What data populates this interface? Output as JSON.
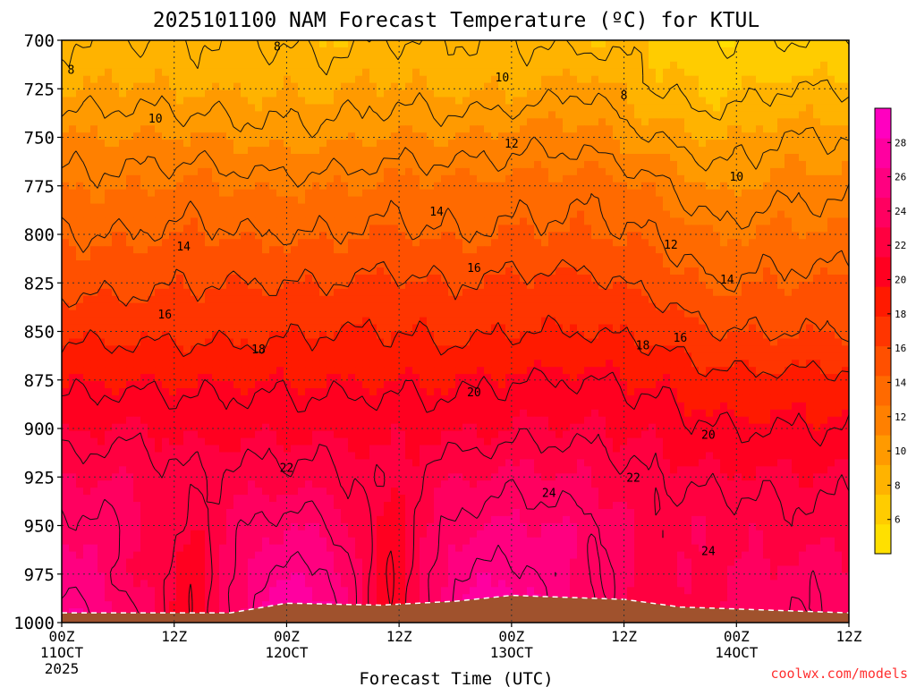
{
  "chart_data": {
    "type": "heatmap",
    "title": "2025101100 NAM Forecast Temperature (ºC) for KTUL",
    "xlabel": "Forecast Time (UTC)",
    "ylabel": "",
    "credit": "coolwx.com/models",
    "x_ticks": [
      {
        "hours": 0,
        "line1": "00Z",
        "line2": "11OCT",
        "line3": "2025"
      },
      {
        "hours": 12,
        "line1": "12Z",
        "line2": "",
        "line3": ""
      },
      {
        "hours": 24,
        "line1": "00Z",
        "line2": "12OCT",
        "line3": ""
      },
      {
        "hours": 36,
        "line1": "12Z",
        "line2": "",
        "line3": ""
      },
      {
        "hours": 48,
        "line1": "00Z",
        "line2": "13OCT",
        "line3": ""
      },
      {
        "hours": 60,
        "line1": "12Z",
        "line2": "",
        "line3": ""
      },
      {
        "hours": 72,
        "line1": "00Z",
        "line2": "14OCT",
        "line3": ""
      },
      {
        "hours": 84,
        "line1": "12Z",
        "line2": "",
        "line3": ""
      }
    ],
    "xlim_hours": [
      0,
      84
    ],
    "y_ticks": [
      "700",
      "725",
      "750",
      "775",
      "800",
      "825",
      "850",
      "875",
      "900",
      "925",
      "950",
      "975",
      "1000"
    ],
    "ylim": [
      1000,
      700
    ],
    "grid": true,
    "colorbar": {
      "placement": "right",
      "ticks": [
        "6",
        "8",
        "10",
        "12",
        "14",
        "16",
        "18",
        "20",
        "22",
        "24",
        "26",
        "28"
      ],
      "range": [
        4,
        30
      ],
      "colors": [
        "#FFE000",
        "#FFCC00",
        "#FFB300",
        "#FF9A00",
        "#FF8000",
        "#FF6A00",
        "#FF5000",
        "#FF3500",
        "#FF1A00",
        "#FF0020",
        "#FF0040",
        "#FF0060",
        "#FF0080",
        "#FF00A0",
        "#FF00C0"
      ]
    },
    "contour_labels": [
      {
        "text": "8",
        "hours": 1,
        "p": 715
      },
      {
        "text": "8",
        "hours": 23,
        "p": 703
      },
      {
        "text": "8",
        "hours": 60,
        "p": 728
      },
      {
        "text": "10",
        "hours": 10,
        "p": 740
      },
      {
        "text": "10",
        "hours": 47,
        "p": 719
      },
      {
        "text": "10",
        "hours": 72,
        "p": 770
      },
      {
        "text": "12",
        "hours": 48,
        "p": 753
      },
      {
        "text": "12",
        "hours": 65,
        "p": 805
      },
      {
        "text": "14",
        "hours": 13,
        "p": 806
      },
      {
        "text": "14",
        "hours": 40,
        "p": 788
      },
      {
        "text": "14",
        "hours": 71,
        "p": 823
      },
      {
        "text": "16",
        "hours": 11,
        "p": 841
      },
      {
        "text": "16",
        "hours": 44,
        "p": 817
      },
      {
        "text": "16",
        "hours": 66,
        "p": 853
      },
      {
        "text": "18",
        "hours": 21,
        "p": 859
      },
      {
        "text": "18",
        "hours": 62,
        "p": 857
      },
      {
        "text": "20",
        "hours": 44,
        "p": 881
      },
      {
        "text": "20",
        "hours": 69,
        "p": 903
      },
      {
        "text": "22",
        "hours": 24,
        "p": 920
      },
      {
        "text": "22",
        "hours": 61,
        "p": 925
      },
      {
        "text": "24",
        "hours": 52,
        "p": 933
      },
      {
        "text": "24",
        "hours": 69,
        "p": 963
      }
    ],
    "field_rows": [
      {
        "p": 700,
        "values": [
          8,
          8,
          8,
          8,
          7.5,
          8,
          8,
          8,
          7.5,
          7.5,
          6,
          6,
          6
        ]
      },
      {
        "p": 725,
        "values": [
          9,
          9.5,
          9,
          9,
          9,
          9.5,
          9,
          9,
          10,
          8,
          7,
          8,
          8
        ]
      },
      {
        "p": 750,
        "values": [
          11,
          11,
          11,
          10.5,
          10.5,
          11,
          11,
          11.5,
          11.5,
          10,
          9,
          10,
          10
        ]
      },
      {
        "p": 775,
        "values": [
          12.5,
          12.5,
          13,
          12.5,
          12.5,
          13,
          13,
          13,
          13.5,
          12.5,
          10.5,
          11.5,
          11.5
        ]
      },
      {
        "p": 800,
        "values": [
          14,
          14,
          14.5,
          14,
          14,
          14.5,
          14,
          14.5,
          14.5,
          14,
          12.5,
          13,
          13
        ]
      },
      {
        "p": 825,
        "values": [
          15.5,
          15.5,
          16,
          16,
          16,
          16.5,
          16,
          16.5,
          16.5,
          15.5,
          14,
          14.5,
          14.5
        ]
      },
      {
        "p": 850,
        "values": [
          17.5,
          17.5,
          17.5,
          17.5,
          18,
          18,
          17.5,
          18,
          18,
          17.5,
          16,
          16,
          16
        ]
      },
      {
        "p": 875,
        "values": [
          19.5,
          19.5,
          19.5,
          19.5,
          19.5,
          19.5,
          19.5,
          20,
          20,
          19.5,
          18.5,
          18.5,
          18.5
        ]
      },
      {
        "p": 900,
        "values": [
          21,
          21.5,
          21,
          21,
          21,
          21,
          21,
          21.5,
          21.5,
          21,
          20,
          20,
          20
        ]
      },
      {
        "p": 925,
        "values": [
          23,
          23,
          22,
          22.5,
          22.5,
          21.5,
          23,
          23.5,
          23,
          22,
          21.5,
          21.5,
          21.5
        ]
      },
      {
        "p": 950,
        "values": [
          24.5,
          24,
          21.5,
          24.5,
          24.5,
          20.5,
          24.5,
          25,
          24.5,
          22.5,
          23,
          22.5,
          22.5
        ]
      },
      {
        "p": 975,
        "values": [
          26,
          23.5,
          20.5,
          26,
          26.5,
          20,
          26,
          26.5,
          24.5,
          22.5,
          23,
          23.5,
          23.5
        ]
      },
      {
        "p": 1000,
        "values": [
          27,
          25,
          20,
          27,
          27.5,
          20,
          27,
          27.5,
          24,
          22.5,
          23,
          24,
          24
        ]
      }
    ],
    "field_hours": [
      0,
      7,
      14,
      21,
      28,
      35,
      42,
      49,
      56,
      63,
      70,
      77,
      84
    ],
    "terrain": {
      "color": "#A0522D",
      "points": [
        {
          "hours": 0,
          "p": 995
        },
        {
          "hours": 18,
          "p": 995
        },
        {
          "hours": 24,
          "p": 990
        },
        {
          "hours": 34,
          "p": 991
        },
        {
          "hours": 42,
          "p": 989
        },
        {
          "hours": 48,
          "p": 986
        },
        {
          "hours": 60,
          "p": 988
        },
        {
          "hours": 66,
          "p": 992
        },
        {
          "hours": 84,
          "p": 995
        }
      ]
    }
  }
}
